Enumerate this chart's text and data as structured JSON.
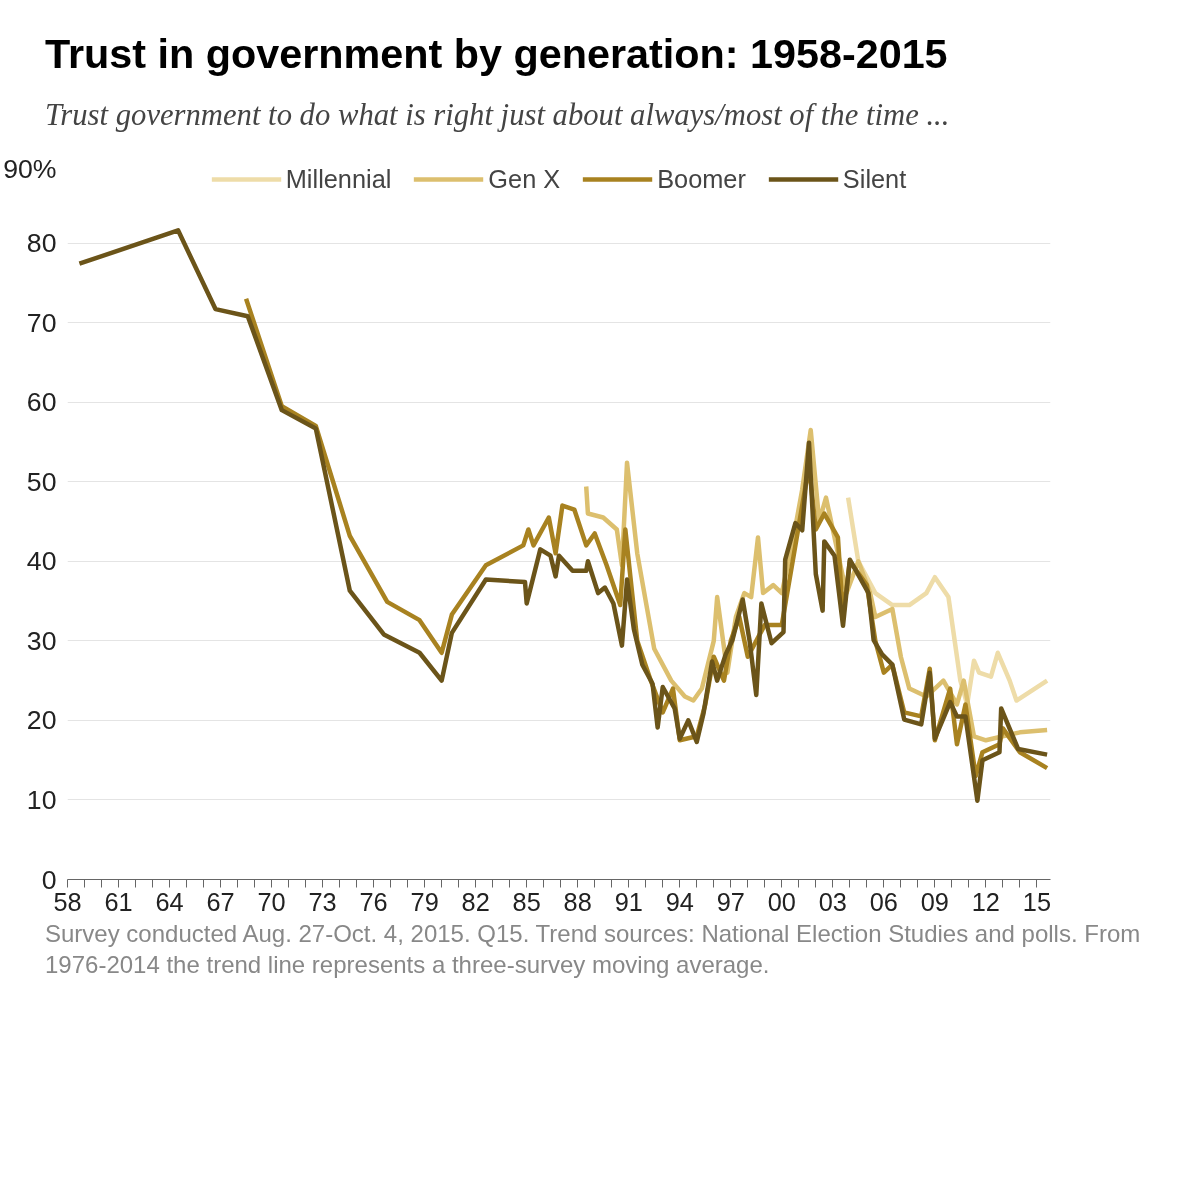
{
  "chart_data": {
    "type": "line",
    "title": "Trust in government by generation: 1958-2015",
    "subtitle": "Trust government to do what is right just about always/most of the time ...",
    "annotations": [
      "Survey conducted Aug. 27-Oct. 4, 2015. Q15. Trend sources: National Election Studies and polls. From 1976-2014 the trend line represents a three-survey moving average."
    ],
    "xlim": [
      1958,
      2015.8
    ],
    "ylim": [
      0,
      90
    ],
    "xticks": [
      {
        "value": 1958,
        "label": "58"
      },
      {
        "value": 1959,
        "label": null
      },
      {
        "value": 1960,
        "label": null
      },
      {
        "value": 1961,
        "label": "61"
      },
      {
        "value": 1962,
        "label": null
      },
      {
        "value": 1963,
        "label": null
      },
      {
        "value": 1964,
        "label": "64"
      },
      {
        "value": 1965,
        "label": null
      },
      {
        "value": 1966,
        "label": null
      },
      {
        "value": 1967,
        "label": "67"
      },
      {
        "value": 1968,
        "label": null
      },
      {
        "value": 1969,
        "label": null
      },
      {
        "value": 1970,
        "label": "70"
      },
      {
        "value": 1971,
        "label": null
      },
      {
        "value": 1972,
        "label": null
      },
      {
        "value": 1973,
        "label": "73"
      },
      {
        "value": 1974,
        "label": null
      },
      {
        "value": 1975,
        "label": null
      },
      {
        "value": 1976,
        "label": "76"
      },
      {
        "value": 1977,
        "label": null
      },
      {
        "value": 1978,
        "label": null
      },
      {
        "value": 1979,
        "label": "79"
      },
      {
        "value": 1980,
        "label": null
      },
      {
        "value": 1981,
        "label": null
      },
      {
        "value": 1982,
        "label": "82"
      },
      {
        "value": 1983,
        "label": null
      },
      {
        "value": 1984,
        "label": null
      },
      {
        "value": 1985,
        "label": "85"
      },
      {
        "value": 1986,
        "label": null
      },
      {
        "value": 1987,
        "label": null
      },
      {
        "value": 1988,
        "label": "88"
      },
      {
        "value": 1989,
        "label": null
      },
      {
        "value": 1990,
        "label": null
      },
      {
        "value": 1991,
        "label": "91"
      },
      {
        "value": 1992,
        "label": null
      },
      {
        "value": 1993,
        "label": null
      },
      {
        "value": 1994,
        "label": "94"
      },
      {
        "value": 1995,
        "label": null
      },
      {
        "value": 1996,
        "label": null
      },
      {
        "value": 1997,
        "label": "97"
      },
      {
        "value": 1998,
        "label": null
      },
      {
        "value": 1999,
        "label": null
      },
      {
        "value": 2000,
        "label": "00"
      },
      {
        "value": 2001,
        "label": null
      },
      {
        "value": 2002,
        "label": null
      },
      {
        "value": 2003,
        "label": "03"
      },
      {
        "value": 2004,
        "label": null
      },
      {
        "value": 2005,
        "label": null
      },
      {
        "value": 2006,
        "label": "06"
      },
      {
        "value": 2007,
        "label": null
      },
      {
        "value": 2008,
        "label": null
      },
      {
        "value": 2009,
        "label": "09"
      },
      {
        "value": 2010,
        "label": null
      },
      {
        "value": 2011,
        "label": null
      },
      {
        "value": 2012,
        "label": "12"
      },
      {
        "value": 2013,
        "label": null
      },
      {
        "value": 2014,
        "label": null
      },
      {
        "value": 2015,
        "label": "15"
      }
    ],
    "yticks": [
      0,
      10,
      20,
      30,
      40,
      50,
      60,
      70,
      80,
      {
        "value": 90,
        "label": "90%"
      }
    ],
    "grid": "y",
    "legend": "top",
    "marker": "none",
    "line_style": "solid",
    "series": [
      {
        "name": "Millennial",
        "color": "#eedca8",
        "x": [
          2003.9,
          2004.5,
          2005.5,
          2006.5,
          2007.5,
          2008.5,
          2009,
          2009.8,
          2010.5,
          2010.9,
          2011.3,
          2011.6,
          2012.3,
          2012.7,
          2013.4,
          2013.8,
          2015.6
        ],
        "values": [
          48,
          40,
          36,
          34.5,
          34.5,
          36,
          38,
          35.5,
          25,
          22,
          27.5,
          26,
          25.5,
          28.5,
          25,
          22.5,
          25
        ]
      },
      {
        "name": "Gen X",
        "color": "#dcbf6e",
        "x": [
          1988.5,
          1988.6,
          1989.5,
          1990.3,
          1990.6,
          1990.9,
          1991.5,
          1992.5,
          1993.5,
          1994.3,
          1994.8,
          1995.3,
          1996,
          1996.2,
          1996.8,
          1997.3,
          1997.8,
          1998.2,
          1998.6,
          1998.9,
          1999.5,
          2000,
          2000.6,
          2001.2,
          2001.7,
          2002.2,
          2002.6,
          2003.2,
          2003.8,
          2004.5,
          2005.2,
          2005.5,
          2006.5,
          2007,
          2007.5,
          2008.5,
          2009.5,
          2010.3,
          2010.7,
          2011.3,
          2012,
          2013,
          2014,
          2015.6
        ],
        "values": [
          49.4,
          46,
          45.5,
          44,
          39.5,
          52.4,
          41,
          29,
          25,
          23,
          22.5,
          24,
          30,
          35.5,
          26,
          33,
          36,
          35.5,
          43,
          36,
          37,
          36,
          42,
          49,
          56.5,
          45,
          48,
          42,
          36,
          40,
          36,
          33,
          34,
          28,
          24,
          23,
          25,
          22,
          25,
          18,
          17.5,
          18,
          18.5,
          18.8
        ]
      },
      {
        "name": "Boomer",
        "color": "#a88220",
        "x": [
          1968.5,
          1970.6,
          1972.6,
          1974.6,
          1976.8,
          1978.7,
          1980,
          1980.6,
          1982.6,
          1984.8,
          1985.1,
          1985.4,
          1986.3,
          1986.7,
          1987.1,
          1987.8,
          1988.5,
          1989,
          1989.7,
          1990.5,
          1990.8,
          1991.5,
          1992.3,
          1993,
          1993.6,
          1994,
          1995,
          1995.5,
          1996,
          1996.6,
          1997,
          1997.5,
          1998,
          1999,
          2000,
          2000.8,
          2001.6,
          2002,
          2002.5,
          2003.3,
          2003.6,
          2004,
          2005,
          2005.5,
          2006,
          2006.5,
          2007.2,
          2008.2,
          2008.7,
          2009,
          2009.9,
          2010.3,
          2010.8,
          2011.4,
          2011.8,
          2012.8,
          2013,
          2014,
          2015.6
        ],
        "values": [
          73,
          59.5,
          57,
          43.2,
          34.9,
          32.6,
          28.5,
          33.3,
          39.5,
          42,
          44,
          42,
          45.5,
          41,
          47,
          46.5,
          42,
          43.5,
          39.5,
          34.5,
          44,
          30,
          25,
          21,
          24,
          17.5,
          18,
          22,
          28,
          25,
          30,
          33,
          28,
          32,
          32,
          42,
          52,
          44,
          46,
          43,
          33,
          40,
          37,
          30,
          26,
          27,
          21,
          20.5,
          26.5,
          17.5,
          24,
          17,
          22,
          13,
          16,
          17,
          19,
          16,
          14
        ]
      },
      {
        "name": "Silent",
        "color": "#6b5419",
        "x": [
          1958.7,
          1964.5,
          1966.7,
          1968.6,
          1970.6,
          1972.6,
          1974.6,
          1976.6,
          1978.7,
          1980,
          1980.6,
          1982.6,
          1984.9,
          1985,
          1985.8,
          1986.4,
          1986.7,
          1986.9,
          1987.7,
          1988.5,
          1988.6,
          1989.2,
          1989.6,
          1990.1,
          1990.6,
          1990.9,
          1991.3,
          1991.8,
          1992.4,
          1992.7,
          1993,
          1993.7,
          1994,
          1994.5,
          1995,
          1995.4,
          1995.9,
          1996.2,
          1996.7,
          1997.1,
          1997.7,
          1998.1,
          1998.5,
          1998.8,
          1999.4,
          2000.1,
          2000.2,
          2000.8,
          2001.2,
          2001.6,
          2002,
          2002.4,
          2002.5,
          2003.1,
          2003.6,
          2004,
          2005.1,
          2005.4,
          2005.9,
          2006.5,
          2007.2,
          2008.2,
          2008.7,
          2009,
          2009.9,
          2010.3,
          2010.8,
          2011.5,
          2011.8,
          2012.8,
          2012.9,
          2013.9,
          2015.6
        ],
        "values": [
          77.4,
          81.6,
          71.7,
          70.8,
          59,
          56.7,
          36.3,
          30.8,
          28.5,
          25,
          31,
          37.7,
          37.4,
          34.7,
          41.5,
          40.7,
          38.1,
          40.7,
          38.8,
          38.8,
          40,
          36,
          36.7,
          34.7,
          29.4,
          37.7,
          31.5,
          27,
          24.6,
          19.1,
          24.2,
          21.5,
          17.7,
          20,
          17.3,
          20.9,
          27.4,
          25,
          28.3,
          30.1,
          35.2,
          30.1,
          23.2,
          34.7,
          29.7,
          31.1,
          40.2,
          44.8,
          43.9,
          54.9,
          38.4,
          33.8,
          42.5,
          40.7,
          31.9,
          40.2,
          36,
          30.1,
          28.3,
          27,
          20.1,
          19.5,
          26,
          17.7,
          22.3,
          20.5,
          20.5,
          9.9,
          15,
          16,
          21.5,
          16.4,
          15.7
        ]
      }
    ]
  }
}
